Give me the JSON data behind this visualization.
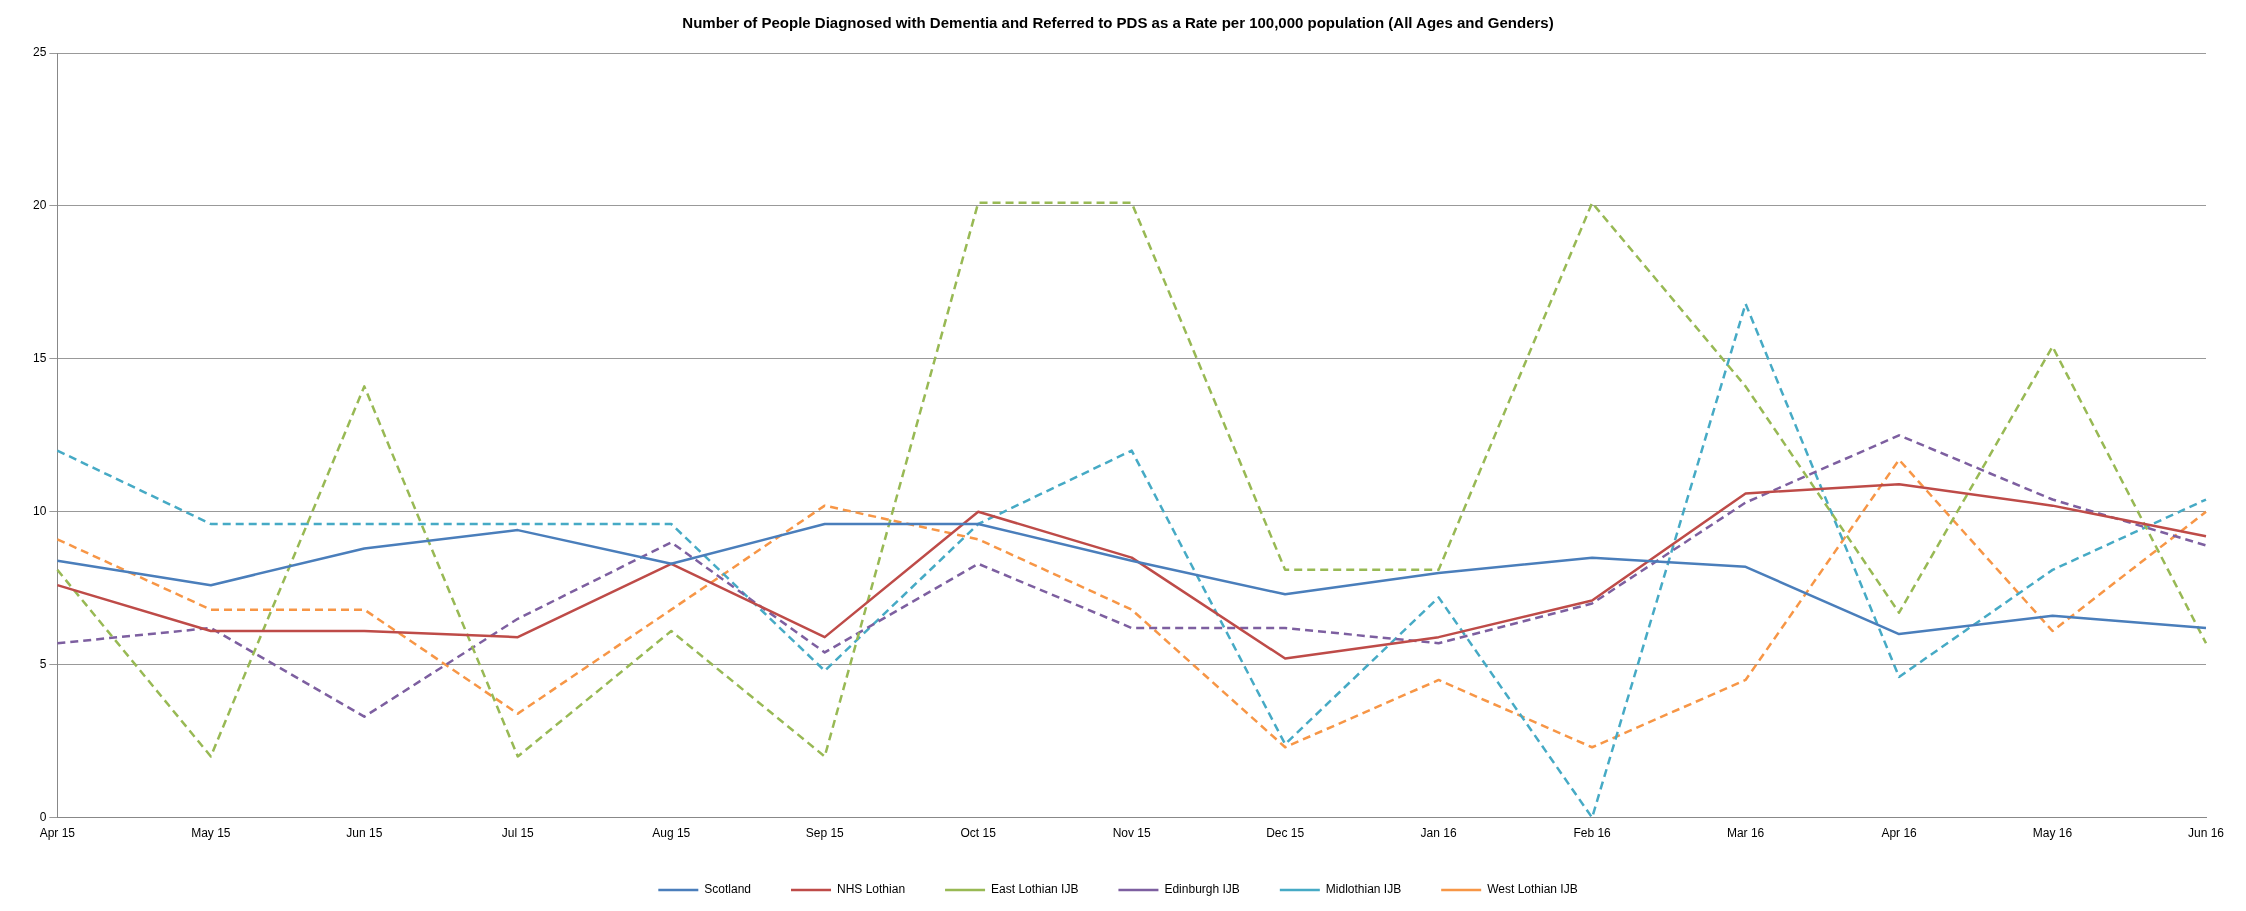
{
  "chart_data": {
    "type": "line",
    "title": "Number of People Diagnosed with Dementia and Referred to PDS as a Rate per 100,000 population (All Ages and Genders)",
    "categories": [
      "Apr 15",
      "May 15",
      "Jun 15",
      "Jul 15",
      "Aug 15",
      "Sep 15",
      "Oct 15",
      "Nov 15",
      "Dec 15",
      "Jan 16",
      "Feb 16",
      "Mar 16",
      "Apr 16",
      "May 16",
      "Jun 16"
    ],
    "series": [
      {
        "name": "Scotland",
        "color": "#4a7ebb",
        "line_style": "solid",
        "values": [
          8.4,
          7.6,
          8.8,
          9.4,
          8.3,
          9.6,
          9.6,
          8.4,
          7.3,
          8.0,
          8.5,
          8.2,
          6.0,
          6.6,
          6.2
        ]
      },
      {
        "name": "NHS Lothian",
        "color": "#be4b48",
        "line_style": "solid",
        "values": [
          7.6,
          6.1,
          6.1,
          5.9,
          8.3,
          5.9,
          10.0,
          8.5,
          5.2,
          5.9,
          7.1,
          10.6,
          10.9,
          10.2,
          9.2
        ]
      },
      {
        "name": "East Lothian IJB",
        "color": "#98b954",
        "line_style": "dashed",
        "values": [
          8.1,
          2.0,
          14.1,
          2.0,
          6.1,
          2.0,
          20.1,
          20.1,
          8.1,
          8.1,
          20.1,
          14.1,
          6.7,
          15.4,
          5.7
        ]
      },
      {
        "name": "Edinburgh IJB",
        "color": "#7d5fa0",
        "line_style": "dashed",
        "values": [
          5.7,
          6.2,
          3.3,
          6.5,
          9.0,
          5.4,
          8.3,
          6.2,
          6.2,
          5.7,
          7.0,
          10.3,
          12.5,
          10.4,
          8.9
        ]
      },
      {
        "name": "Midlothian IJB",
        "color": "#46aac5",
        "line_style": "dashed",
        "values": [
          12.0,
          9.6,
          9.6,
          9.6,
          9.6,
          4.8,
          9.6,
          12.0,
          2.4,
          7.2,
          0.0,
          16.8,
          4.6,
          8.1,
          10.4
        ]
      },
      {
        "name": "West Lothian IJB",
        "color": "#f79646",
        "line_style": "dashed",
        "values": [
          9.1,
          6.8,
          6.8,
          3.4,
          6.8,
          10.2,
          9.1,
          6.8,
          2.3,
          4.5,
          2.3,
          4.5,
          11.7,
          6.1,
          10.0
        ]
      }
    ],
    "ylim": [
      0,
      25
    ],
    "yticks": [
      0,
      5,
      10,
      15,
      20,
      25
    ],
    "grid": "y",
    "legend": "bottom",
    "marker": "none"
  }
}
